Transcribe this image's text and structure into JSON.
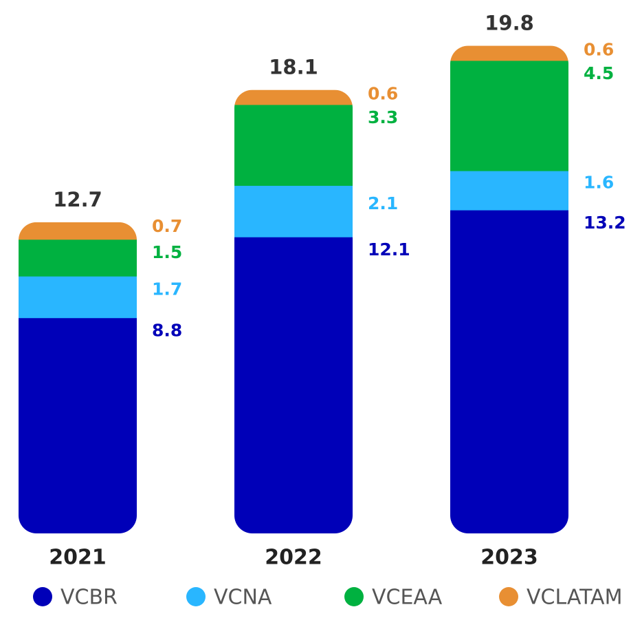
{
  "chart_data": {
    "type": "stacked-bar",
    "categories": [
      "2021",
      "2022",
      "2023"
    ],
    "series": [
      {
        "name": "VCBR",
        "color": "#0000b8",
        "values": [
          8.8,
          12.1,
          13.2
        ]
      },
      {
        "name": "VCNA",
        "color": "#29b6ff",
        "values": [
          1.7,
          2.1,
          1.6
        ]
      },
      {
        "name": "VCEAA",
        "color": "#00b140",
        "values": [
          1.5,
          3.3,
          4.5
        ]
      },
      {
        "name": "VCLATAM",
        "color": "#e88f33",
        "values": [
          0.7,
          0.6,
          0.6
        ]
      }
    ],
    "totals": [
      12.7,
      18.1,
      19.8
    ]
  }
}
